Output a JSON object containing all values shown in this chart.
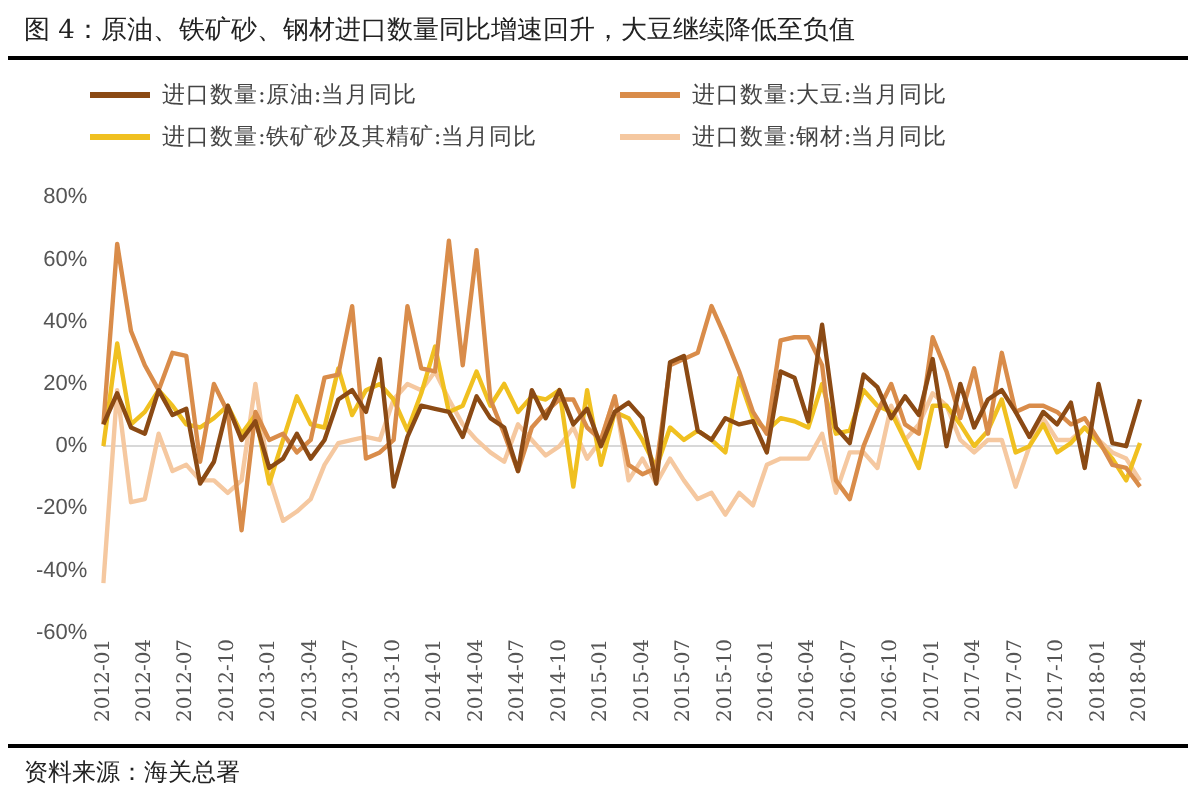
{
  "chart_data": {
    "type": "line",
    "title": "图 4：原油、铁矿砂、钢材进口数量同比增速回升，大豆继续降低至负值",
    "annotations": [
      "资料来源：海关总署"
    ],
    "categories": [
      "2012-01",
      null,
      null,
      "2012-04",
      null,
      null,
      "2012-07",
      null,
      null,
      "2012-10",
      null,
      null,
      "2013-01",
      null,
      null,
      "2013-04",
      null,
      null,
      "2013-07",
      null,
      null,
      "2013-10",
      null,
      null,
      "2014-01",
      null,
      null,
      "2014-04",
      null,
      null,
      "2014-07",
      null,
      null,
      "2014-10",
      null,
      null,
      "2015-01",
      null,
      null,
      "2015-04",
      null,
      null,
      "2015-07",
      null,
      null,
      "2015-10",
      null,
      null,
      "2016-01",
      null,
      null,
      "2016-04",
      null,
      null,
      "2016-07",
      null,
      null,
      "2016-10",
      null,
      null,
      "2017-01",
      null,
      null,
      "2017-04",
      null,
      null,
      "2017-07",
      null,
      null,
      "2017-10",
      null,
      null,
      "2018-01",
      null,
      null,
      "2018-04"
    ],
    "series": [
      {
        "name": "进口数量:原油:当月同比",
        "color": "#8b4a14",
        "values": [
          7,
          17,
          6,
          4,
          18,
          10,
          12,
          -12,
          -5,
          13,
          2,
          8,
          -7,
          -4,
          4,
          -4,
          2,
          15,
          18,
          11,
          28,
          -13,
          3,
          13,
          12,
          11,
          3,
          16,
          9,
          6,
          -8,
          18,
          9,
          18,
          7,
          12,
          0,
          11,
          14,
          9,
          -12,
          27,
          29,
          5,
          2,
          9,
          7,
          8,
          -2,
          24,
          22,
          8,
          39,
          6,
          1,
          23,
          19,
          9,
          16,
          10,
          28,
          0,
          20,
          6,
          15,
          18,
          11,
          3,
          11,
          7,
          14,
          -7,
          20,
          1,
          0,
          15
        ]
      },
      {
        "name": "进口数量:大豆:当月同比",
        "color": "#d98c4a",
        "values": [
          7,
          65,
          37,
          26,
          18,
          30,
          29,
          -5,
          20,
          11,
          -27,
          11,
          2,
          4,
          -2,
          2,
          22,
          23,
          45,
          -4,
          -2,
          2,
          45,
          25,
          24,
          66,
          26,
          63,
          15,
          4,
          -8,
          6,
          11,
          15,
          15,
          6,
          2,
          16,
          -6,
          -9,
          -7,
          26,
          28,
          30,
          45,
          35,
          24,
          11,
          4,
          34,
          35,
          35,
          26,
          -11,
          -17,
          0,
          11,
          20,
          7,
          4,
          35,
          24,
          9,
          25,
          4,
          30,
          11,
          13,
          13,
          11,
          7,
          9,
          2,
          -6,
          -7,
          -13
        ]
      },
      {
        "name": "进口数量:铁矿砂及其精矿:当月同比",
        "color": "#f0c020",
        "values": [
          0,
          33,
          7,
          11,
          18,
          13,
          7,
          6,
          9,
          13,
          4,
          10,
          -12,
          2,
          16,
          7,
          6,
          25,
          10,
          18,
          20,
          15,
          5,
          17,
          32,
          11,
          13,
          24,
          13,
          20,
          11,
          16,
          15,
          18,
          -13,
          18,
          -6,
          11,
          9,
          2,
          -7,
          6,
          2,
          5,
          2,
          -2,
          22,
          9,
          5,
          9,
          8,
          6,
          20,
          4,
          5,
          18,
          13,
          11,
          2,
          -7,
          13,
          13,
          7,
          0,
          5,
          15,
          -2,
          0,
          7,
          -2,
          1,
          6,
          1,
          -4,
          -11,
          1
        ]
      },
      {
        "name": "进口数量:钢材:当月同比",
        "color": "#f5c8a0",
        "values": [
          -44,
          18,
          -18,
          -17,
          4,
          -8,
          -6,
          -11,
          -11,
          -15,
          -11,
          20,
          -10,
          -24,
          -21,
          -17,
          -6,
          1,
          2,
          3,
          2,
          15,
          20,
          18,
          24,
          15,
          7,
          2,
          -2,
          -5,
          7,
          2,
          -3,
          0,
          6,
          -4,
          2,
          16,
          -11,
          -4,
          -12,
          -4,
          -11,
          -17,
          -15,
          -22,
          -15,
          -19,
          -6,
          -4,
          -4,
          -4,
          4,
          -15,
          -2,
          -2,
          -7,
          13,
          2,
          7,
          17,
          13,
          2,
          -2,
          2,
          2,
          -13,
          0,
          9,
          2,
          2,
          6,
          2,
          -2,
          -4,
          -11
        ]
      }
    ],
    "ylim": [
      -60,
      80
    ],
    "yticks": [
      {
        "value": -60,
        "label": "-60%"
      },
      {
        "value": -40,
        "label": "-40%"
      },
      {
        "value": -20,
        "label": "-20%"
      },
      {
        "value": 0,
        "label": "0%"
      },
      {
        "value": 20,
        "label": "20%"
      },
      {
        "value": 40,
        "label": "40%"
      },
      {
        "value": 60,
        "label": "60%"
      },
      {
        "value": 80,
        "label": "80%"
      }
    ],
    "legend": "top",
    "marker": "none",
    "line_style": "solid"
  }
}
